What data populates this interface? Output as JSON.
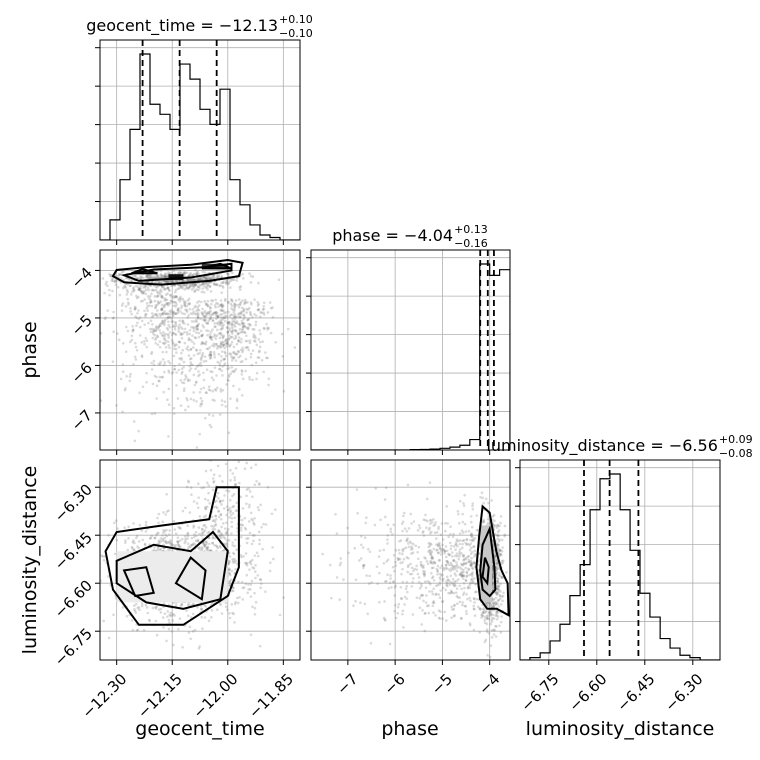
{
  "chart_data": {
    "type": "corner",
    "parameters": [
      "geocent_time",
      "phase",
      "luminosity_distance"
    ],
    "titles": [
      {
        "param": "geocent_time",
        "text": "geocent_time = −12.13",
        "sup": "+0.10",
        "sub": "−0.10"
      },
      {
        "param": "phase",
        "text": "phase = −4.04",
        "sup": "+0.13",
        "sub": "−0.16"
      },
      {
        "param": "luminosity_distance",
        "text": "luminosity_distance = −6.56",
        "sup": "+0.09",
        "sub": "−0.08"
      }
    ],
    "axis_labels": {
      "geocent_time": "geocent_time",
      "phase": "phase",
      "luminosity_distance": "luminosity_distance"
    },
    "ranges": {
      "geocent_time": [
        -12.345,
        -11.805
      ],
      "phase": [
        -7.78,
        -3.57
      ],
      "luminosity_distance": [
        -6.84,
        -6.215
      ]
    },
    "ticks": {
      "geocent_time": [
        {
          "v": -12.3,
          "label": "−12.30"
        },
        {
          "v": -12.15,
          "label": "−12.15"
        },
        {
          "v": -12.0,
          "label": "−12.00"
        },
        {
          "v": -11.85,
          "label": "−11.85"
        }
      ],
      "phase": [
        {
          "v": -7,
          "label": "−7"
        },
        {
          "v": -6,
          "label": "−6"
        },
        {
          "v": -5,
          "label": "−5"
        },
        {
          "v": -4,
          "label": "−4"
        }
      ],
      "luminosity_distance": [
        {
          "v": -6.75,
          "label": "−6.75"
        },
        {
          "v": -6.6,
          "label": "−6.60"
        },
        {
          "v": -6.45,
          "label": "−6.45"
        },
        {
          "v": -6.3,
          "label": "−6.30"
        }
      ]
    },
    "quantiles": {
      "geocent_time": [
        -12.23,
        -12.13,
        -12.03
      ],
      "phase": [
        -4.2,
        -4.04,
        -3.91
      ],
      "luminosity_distance": [
        -6.64,
        -6.56,
        -6.47
      ]
    },
    "histograms": {
      "geocent_time": {
        "edges": [
          -12.345,
          -12.318,
          -12.291,
          -12.264,
          -12.237,
          -12.21,
          -12.183,
          -12.156,
          -12.129,
          -12.102,
          -12.075,
          -12.048,
          -12.021,
          -11.994,
          -11.967,
          -11.94,
          -11.913,
          -11.886,
          -11.859,
          -11.832,
          -11.805
        ],
        "counts": [
          0,
          4,
          12,
          22,
          37,
          27,
          25,
          22,
          35,
          32,
          26,
          23,
          30,
          12,
          7,
          3,
          1,
          0.5,
          0,
          0
        ]
      },
      "phase": {
        "edges": [
          -7.78,
          -7.57,
          -7.36,
          -7.15,
          -6.94,
          -6.73,
          -6.52,
          -6.31,
          -6.1,
          -5.89,
          -5.68,
          -5.47,
          -5.26,
          -5.05,
          -4.84,
          -4.63,
          -4.42,
          -4.21,
          -4.0,
          -3.79,
          -3.57
        ],
        "counts": [
          0,
          0,
          0,
          0,
          0,
          0,
          0,
          0,
          0,
          0,
          0.2,
          0.3,
          0.5,
          0.9,
          1.5,
          2.5,
          5.5,
          98,
          92,
          95
        ]
      },
      "luminosity_distance": {
        "edges": [
          -6.84,
          -6.809,
          -6.777,
          -6.746,
          -6.715,
          -6.684,
          -6.652,
          -6.621,
          -6.59,
          -6.559,
          -6.527,
          -6.496,
          -6.465,
          -6.434,
          -6.402,
          -6.371,
          -6.34,
          -6.309,
          -6.277,
          -6.246,
          -6.215
        ],
        "counts": [
          0,
          1,
          3,
          8,
          15,
          27,
          40,
          63,
          76,
          78,
          63,
          46,
          28,
          18,
          9,
          5,
          2,
          1,
          0,
          0
        ]
      }
    },
    "grid": true
  }
}
